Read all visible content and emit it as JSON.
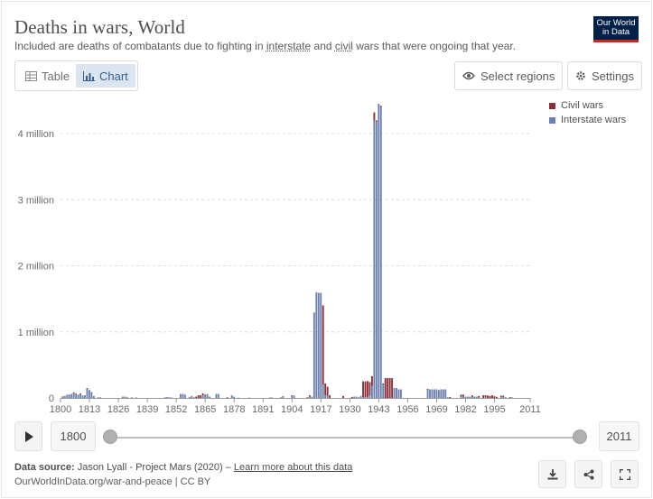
{
  "header": {
    "title": "Deaths in wars, World",
    "subtitle_pre": "Included are deaths of combatants due to fighting in ",
    "subtitle_link1": "interstate",
    "subtitle_mid": " and ",
    "subtitle_link2": "civil",
    "subtitle_post": " wars that were ongoing that year.",
    "logo_line1": "Our World",
    "logo_line2": "in Data"
  },
  "tabs": {
    "table_label": "Table",
    "chart_label": "Chart",
    "active": "chart"
  },
  "controls": {
    "select_regions_label": "Select regions",
    "settings_label": "Settings"
  },
  "timeline": {
    "start_year": "1800",
    "end_year": "2011"
  },
  "footer": {
    "source_label": "Data source:",
    "source_text": " Jason Lyall - Project Mars (2020) – ",
    "learn_more": "Learn more about this data",
    "url": "OurWorldInData.org/war-and-peace | CC BY"
  },
  "colors": {
    "civil": "#883039",
    "interstate": "#6d80ad",
    "grid": "#dddddd"
  },
  "icons": {
    "table": "table-icon",
    "chart": "bar-chart-icon",
    "regions": "eye-icon",
    "settings": "gear-icon",
    "play": "play-icon",
    "download": "download-icon",
    "share": "share-icon",
    "fullscreen": "fullscreen-icon"
  },
  "chart_data": {
    "type": "bar",
    "stacked": true,
    "title": "Deaths in wars, World",
    "xlim": [
      1800,
      2011
    ],
    "ylim": [
      0,
      4500000
    ],
    "x_ticks": [
      "1800",
      "1813",
      "1826",
      "1839",
      "1852",
      "1865",
      "1878",
      "1891",
      "1904",
      "1917",
      "1930",
      "1943",
      "1956",
      "1969",
      "1982",
      "1995",
      "2011"
    ],
    "y_ticks": [
      {
        "value": 0,
        "label": "0"
      },
      {
        "value": 1000000,
        "label": "1 million"
      },
      {
        "value": 2000000,
        "label": "2 million"
      },
      {
        "value": 3000000,
        "label": "3 million"
      },
      {
        "value": 4000000,
        "label": "4 million"
      }
    ],
    "legend_position": "top-right",
    "series": [
      {
        "name": "Civil wars",
        "color": "#883039",
        "points": [
          [
            1801,
            2000
          ],
          [
            1806,
            3000
          ],
          [
            1809,
            8000
          ],
          [
            1812,
            10000
          ],
          [
            1830,
            8000
          ],
          [
            1858,
            10000
          ],
          [
            1861,
            20000
          ],
          [
            1862,
            40000
          ],
          [
            1863,
            40000
          ],
          [
            1864,
            30000
          ],
          [
            1865,
            10000
          ],
          [
            1875,
            10000
          ],
          [
            1900,
            10000
          ],
          [
            1904,
            5000
          ],
          [
            1911,
            10000
          ],
          [
            1912,
            20000
          ],
          [
            1914,
            10000
          ],
          [
            1918,
            1200000
          ],
          [
            1919,
            180000
          ],
          [
            1920,
            140000
          ],
          [
            1921,
            40000
          ],
          [
            1927,
            30000
          ],
          [
            1931,
            15000
          ],
          [
            1936,
            240000
          ],
          [
            1937,
            240000
          ],
          [
            1938,
            240000
          ],
          [
            1939,
            200000
          ],
          [
            1940,
            150000
          ],
          [
            1941,
            120000
          ],
          [
            1942,
            20000
          ],
          [
            1944,
            20000
          ],
          [
            1945,
            20000
          ],
          [
            1946,
            300000
          ],
          [
            1947,
            300000
          ],
          [
            1948,
            300000
          ],
          [
            1949,
            300000
          ],
          [
            1965,
            8000
          ],
          [
            1975,
            15000
          ],
          [
            1980,
            30000
          ],
          [
            1981,
            30000
          ],
          [
            1985,
            20000
          ],
          [
            1988,
            25000
          ],
          [
            1990,
            40000
          ],
          [
            1991,
            30000
          ],
          [
            1992,
            35000
          ],
          [
            1993,
            30000
          ],
          [
            1994,
            40000
          ],
          [
            1995,
            25000
          ],
          [
            1996,
            15000
          ],
          [
            1998,
            20000
          ],
          [
            1999,
            20000
          ],
          [
            2002,
            12000
          ]
        ]
      },
      {
        "name": "Interstate wars",
        "color": "#6d80ad",
        "points": [
          [
            1801,
            20000
          ],
          [
            1802,
            30000
          ],
          [
            1803,
            50000
          ],
          [
            1804,
            50000
          ],
          [
            1805,
            60000
          ],
          [
            1806,
            80000
          ],
          [
            1807,
            70000
          ],
          [
            1808,
            50000
          ],
          [
            1809,
            60000
          ],
          [
            1810,
            40000
          ],
          [
            1811,
            40000
          ],
          [
            1812,
            140000
          ],
          [
            1813,
            120000
          ],
          [
            1814,
            90000
          ],
          [
            1815,
            30000
          ],
          [
            1817,
            10000
          ],
          [
            1818,
            10000
          ],
          [
            1828,
            20000
          ],
          [
            1829,
            20000
          ],
          [
            1832,
            10000
          ],
          [
            1834,
            8000
          ],
          [
            1847,
            10000
          ],
          [
            1848,
            15000
          ],
          [
            1849,
            10000
          ],
          [
            1850,
            6000
          ],
          [
            1854,
            60000
          ],
          [
            1855,
            60000
          ],
          [
            1856,
            50000
          ],
          [
            1859,
            30000
          ],
          [
            1860,
            10000
          ],
          [
            1864,
            40000
          ],
          [
            1865,
            40000
          ],
          [
            1866,
            60000
          ],
          [
            1867,
            20000
          ],
          [
            1870,
            60000
          ],
          [
            1871,
            60000
          ],
          [
            1877,
            40000
          ],
          [
            1878,
            20000
          ],
          [
            1880,
            5000
          ],
          [
            1885,
            6000
          ],
          [
            1894,
            8000
          ],
          [
            1895,
            8000
          ],
          [
            1899,
            10000
          ],
          [
            1900,
            15000
          ],
          [
            1904,
            35000
          ],
          [
            1905,
            35000
          ],
          [
            1912,
            20000
          ],
          [
            1913,
            20000
          ],
          [
            1914,
            1280000
          ],
          [
            1915,
            1600000
          ],
          [
            1916,
            1590000
          ],
          [
            1917,
            1590000
          ],
          [
            1918,
            200000
          ],
          [
            1919,
            40000
          ],
          [
            1920,
            30000
          ],
          [
            1932,
            20000
          ],
          [
            1933,
            20000
          ],
          [
            1934,
            10000
          ],
          [
            1935,
            30000
          ],
          [
            1936,
            10000
          ],
          [
            1937,
            10000
          ],
          [
            1938,
            15000
          ],
          [
            1939,
            40000
          ],
          [
            1940,
            180000
          ],
          [
            1941,
            4200000
          ],
          [
            1942,
            4180000
          ],
          [
            1943,
            4450000
          ],
          [
            1944,
            4400000
          ],
          [
            1945,
            200000
          ],
          [
            1950,
            150000
          ],
          [
            1951,
            150000
          ],
          [
            1952,
            130000
          ],
          [
            1953,
            130000
          ],
          [
            1965,
            130000
          ],
          [
            1966,
            130000
          ],
          [
            1967,
            130000
          ],
          [
            1968,
            130000
          ],
          [
            1969,
            130000
          ],
          [
            1970,
            120000
          ],
          [
            1971,
            130000
          ],
          [
            1972,
            130000
          ],
          [
            1973,
            130000
          ],
          [
            1974,
            10000
          ],
          [
            1980,
            20000
          ],
          [
            1981,
            20000
          ],
          [
            1982,
            20000
          ],
          [
            1983,
            20000
          ],
          [
            1984,
            20000
          ],
          [
            1985,
            20000
          ],
          [
            1986,
            20000
          ],
          [
            1987,
            20000
          ],
          [
            1988,
            5000
          ],
          [
            1991,
            10000
          ],
          [
            1998,
            15000
          ],
          [
            1999,
            15000
          ],
          [
            2000,
            10000
          ],
          [
            2003,
            8000
          ]
        ]
      }
    ]
  }
}
